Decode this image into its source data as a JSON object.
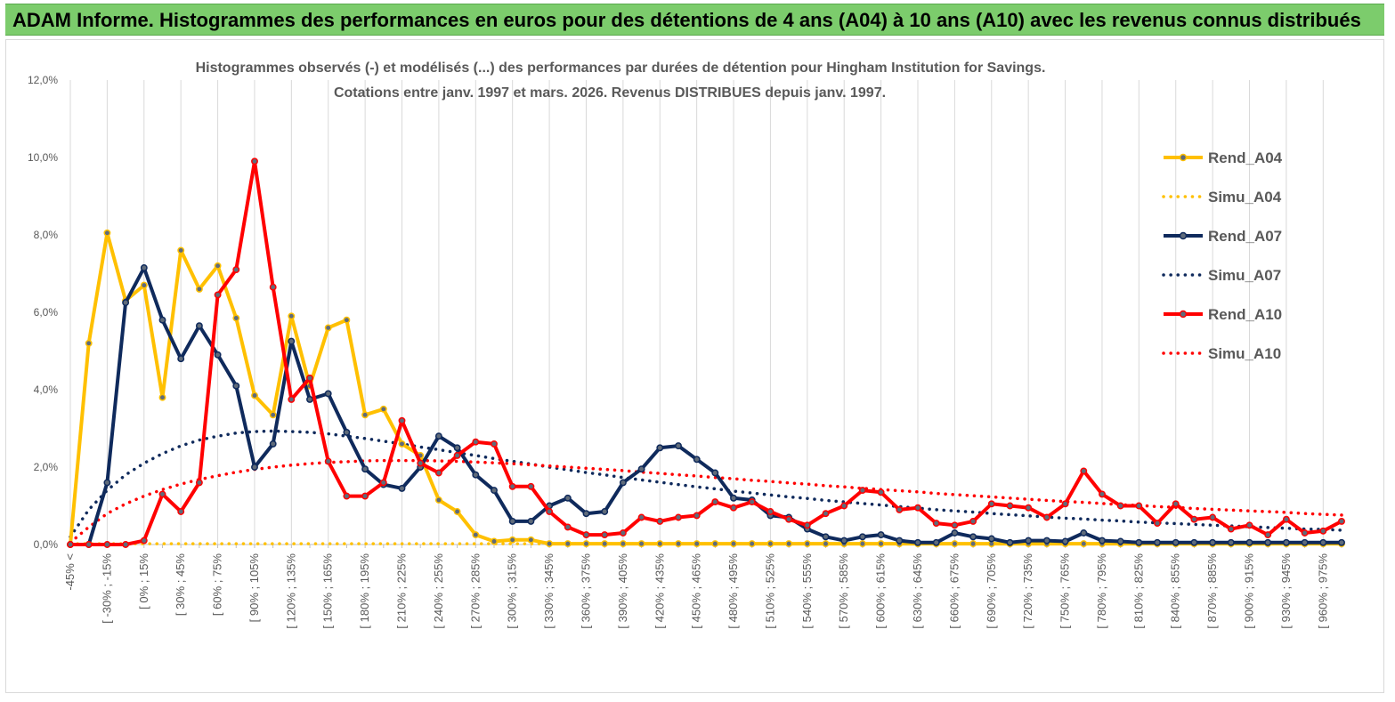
{
  "banner": {
    "title": "ADAM Informe. Histogrammes des performances en euros pour des détentions de 4 ans (A04) à 10 ans (A10) avec les revenus connus distribués"
  },
  "chart_data": {
    "type": "line",
    "title_line1": "Histogrammes observés (-) et modélisés (...) des performances par durées de détention pour Hingham Institution for Savings.",
    "title_line2": "Cotations entre janv. 1997 et mars. 2026. Revenus DISTRIBUES depuis janv. 1997.",
    "xlabel": "",
    "ylabel": "",
    "ylim": [
      0,
      12
    ],
    "y_ticks": [
      "0,0%",
      "2,0%",
      "4,0%",
      "6,0%",
      "8,0%",
      "10,0%",
      "12,0%"
    ],
    "categories": [
      "-45% <",
      "",
      "[ -30% ; -15%",
      "",
      "[ 0% ; 15%",
      "",
      "[ 30% ; 45%",
      "",
      "[ 60% ; 75%",
      "",
      "[ 90% ; 105%",
      "",
      "[ 120% ; 135%",
      "",
      "[ 150% ; 165%",
      "",
      "[ 180% ; 195%",
      "",
      "[ 210% ; 225%",
      "",
      "[ 240% ; 255%",
      "",
      "[ 270% ; 285%",
      "",
      "[ 300% ; 315%",
      "",
      "[ 330% ; 345%",
      "",
      "[ 360% ; 375%",
      "",
      "[ 390% ; 405%",
      "",
      "[ 420% ; 435%",
      "",
      "[ 450% ; 465%",
      "",
      "[ 480% ; 495%",
      "",
      "[ 510% ; 525%",
      "",
      "[ 540% ; 555%",
      "",
      "[ 570% ; 585%",
      "",
      "[ 600% ; 615%",
      "",
      "[ 630% ; 645%",
      "",
      "[ 660% ; 675%",
      "",
      "[ 690% ; 705%",
      "",
      "[ 720% ; 735%",
      "",
      "[ 750% ; 765%",
      "",
      "[ 780% ; 795%",
      "",
      "[ 810% ; 825%",
      "",
      "[ 840% ; 855%",
      "",
      "[ 870% ; 885%",
      "",
      "[ 900% ; 915%",
      "",
      "[ 930% ; 945%",
      "",
      "[ 960% ; 975%",
      ""
    ],
    "series": [
      {
        "name": "Rend_A04",
        "style": "solid",
        "color": "#ffc000",
        "values": [
          0,
          5.2,
          8.05,
          6.3,
          6.7,
          3.8,
          7.6,
          6.6,
          7.2,
          5.85,
          3.85,
          3.35,
          5.9,
          4.1,
          5.6,
          5.8,
          3.35,
          3.5,
          2.6,
          2.3,
          1.15,
          0.85,
          0.25,
          0.08,
          0.12,
          0.12,
          0.02,
          0.02,
          0.02,
          0.02,
          0.02,
          0.02,
          0.02,
          0.02,
          0.02,
          0.02,
          0.02,
          0.02,
          0.02,
          0.02,
          0.02,
          0.02,
          0.02,
          0.02,
          0.02,
          0.02,
          0.02,
          0.02,
          0.02,
          0.02,
          0.02,
          0.02,
          0.02,
          0.02,
          0.02,
          0.02,
          0.02,
          0.02,
          0.02,
          0.02,
          0.02,
          0.02,
          0.02,
          0.02,
          0.02,
          0.02,
          0.02,
          0.02,
          0.02,
          0.02
        ]
      },
      {
        "name": "Simu_A04",
        "style": "dotted",
        "color": "#ffc000",
        "values": [
          0.02,
          0.02,
          0.02,
          0.02,
          0.02,
          0.02,
          0.02,
          0.02,
          0.02,
          0.02,
          0.02,
          0.02,
          0.02,
          0.02,
          0.02,
          0.02,
          0.02,
          0.02,
          0.02,
          0.02,
          0.02,
          0.02,
          0.02,
          0.02,
          0.02,
          0.02,
          0.02,
          0.02,
          0.02,
          0.02,
          0.02,
          0.02,
          0.02,
          0.02,
          0.02,
          0.02,
          0.02,
          0.02,
          0.02,
          0.02,
          0.02,
          0.02,
          0.02,
          0.02,
          0.02,
          0.02,
          0.02,
          0.02,
          0.02,
          0.02,
          0.02,
          0.02,
          0.02,
          0.02,
          0.02,
          0.02,
          0.02,
          0.02,
          0.02,
          0.02,
          0.02,
          0.02,
          0.02,
          0.02,
          0.02,
          0.02,
          0.02,
          0.02,
          0.02,
          0.02
        ]
      },
      {
        "name": "Rend_A07",
        "style": "solid",
        "color": "#0f2a5c",
        "values": [
          0,
          0,
          1.6,
          6.25,
          7.15,
          5.8,
          4.8,
          5.65,
          4.9,
          4.1,
          2.0,
          2.6,
          5.25,
          3.75,
          3.9,
          2.9,
          1.95,
          1.55,
          1.45,
          2.0,
          2.8,
          2.5,
          1.8,
          1.4,
          0.6,
          0.6,
          1.0,
          1.2,
          0.8,
          0.85,
          1.6,
          1.95,
          2.5,
          2.55,
          2.2,
          1.85,
          1.2,
          1.15,
          0.75,
          0.7,
          0.4,
          0.2,
          0.1,
          0.2,
          0.25,
          0.1,
          0.05,
          0.05,
          0.3,
          0.2,
          0.15,
          0.05,
          0.1,
          0.1,
          0.08,
          0.3,
          0.1,
          0.08,
          0.05,
          0.05,
          0.05,
          0.05,
          0.05,
          0.05,
          0.05,
          0.05,
          0.05,
          0.05,
          0.05,
          0.05
        ]
      },
      {
        "name": "Simu_A07",
        "style": "dotted",
        "color": "#0f2a5c",
        "values": [
          0.2,
          0.9,
          1.4,
          1.8,
          2.1,
          2.35,
          2.55,
          2.7,
          2.8,
          2.88,
          2.92,
          2.93,
          2.92,
          2.9,
          2.86,
          2.8,
          2.74,
          2.67,
          2.6,
          2.52,
          2.45,
          2.37,
          2.3,
          2.22,
          2.15,
          2.08,
          2.0,
          1.93,
          1.86,
          1.8,
          1.73,
          1.67,
          1.61,
          1.55,
          1.49,
          1.44,
          1.38,
          1.33,
          1.28,
          1.23,
          1.19,
          1.14,
          1.1,
          1.06,
          1.02,
          0.98,
          0.94,
          0.9,
          0.87,
          0.84,
          0.8,
          0.77,
          0.74,
          0.71,
          0.68,
          0.66,
          0.63,
          0.61,
          0.58,
          0.56,
          0.54,
          0.52,
          0.5,
          0.48,
          0.46,
          0.44,
          0.42,
          0.4,
          0.39,
          0.37
        ]
      },
      {
        "name": "Rend_A10",
        "style": "solid",
        "color": "#ff0000",
        "values": [
          0,
          0,
          0,
          0,
          0.1,
          1.3,
          0.85,
          1.6,
          6.45,
          7.1,
          9.9,
          6.65,
          3.75,
          4.3,
          2.15,
          1.25,
          1.25,
          1.6,
          3.2,
          2.1,
          1.85,
          2.3,
          2.65,
          2.6,
          1.5,
          1.5,
          0.85,
          0.45,
          0.25,
          0.25,
          0.3,
          0.7,
          0.6,
          0.7,
          0.75,
          1.1,
          0.95,
          1.1,
          0.85,
          0.65,
          0.5,
          0.8,
          1.0,
          1.4,
          1.35,
          0.9,
          0.95,
          0.55,
          0.5,
          0.6,
          1.05,
          1.0,
          0.95,
          0.7,
          1.05,
          1.9,
          1.3,
          1.0,
          1.0,
          0.55,
          1.05,
          0.65,
          0.7,
          0.4,
          0.5,
          0.25,
          0.65,
          0.3,
          0.35,
          0.6
        ]
      },
      {
        "name": "Simu_A10",
        "style": "dotted",
        "color": "#ff0000",
        "values": [
          0.05,
          0.45,
          0.8,
          1.05,
          1.25,
          1.42,
          1.56,
          1.68,
          1.78,
          1.87,
          1.94,
          2.0,
          2.05,
          2.09,
          2.12,
          2.14,
          2.16,
          2.17,
          2.17,
          2.17,
          2.16,
          2.15,
          2.13,
          2.11,
          2.09,
          2.06,
          2.03,
          2.0,
          1.97,
          1.94,
          1.91,
          1.87,
          1.84,
          1.8,
          1.77,
          1.73,
          1.7,
          1.66,
          1.63,
          1.59,
          1.56,
          1.52,
          1.49,
          1.45,
          1.42,
          1.39,
          1.36,
          1.32,
          1.29,
          1.26,
          1.23,
          1.2,
          1.17,
          1.14,
          1.11,
          1.09,
          1.06,
          1.03,
          1.01,
          0.98,
          0.96,
          0.93,
          0.91,
          0.89,
          0.87,
          0.85,
          0.83,
          0.8,
          0.78,
          0.76
        ]
      }
    ],
    "legend_position": "right",
    "grid": "vertical"
  }
}
